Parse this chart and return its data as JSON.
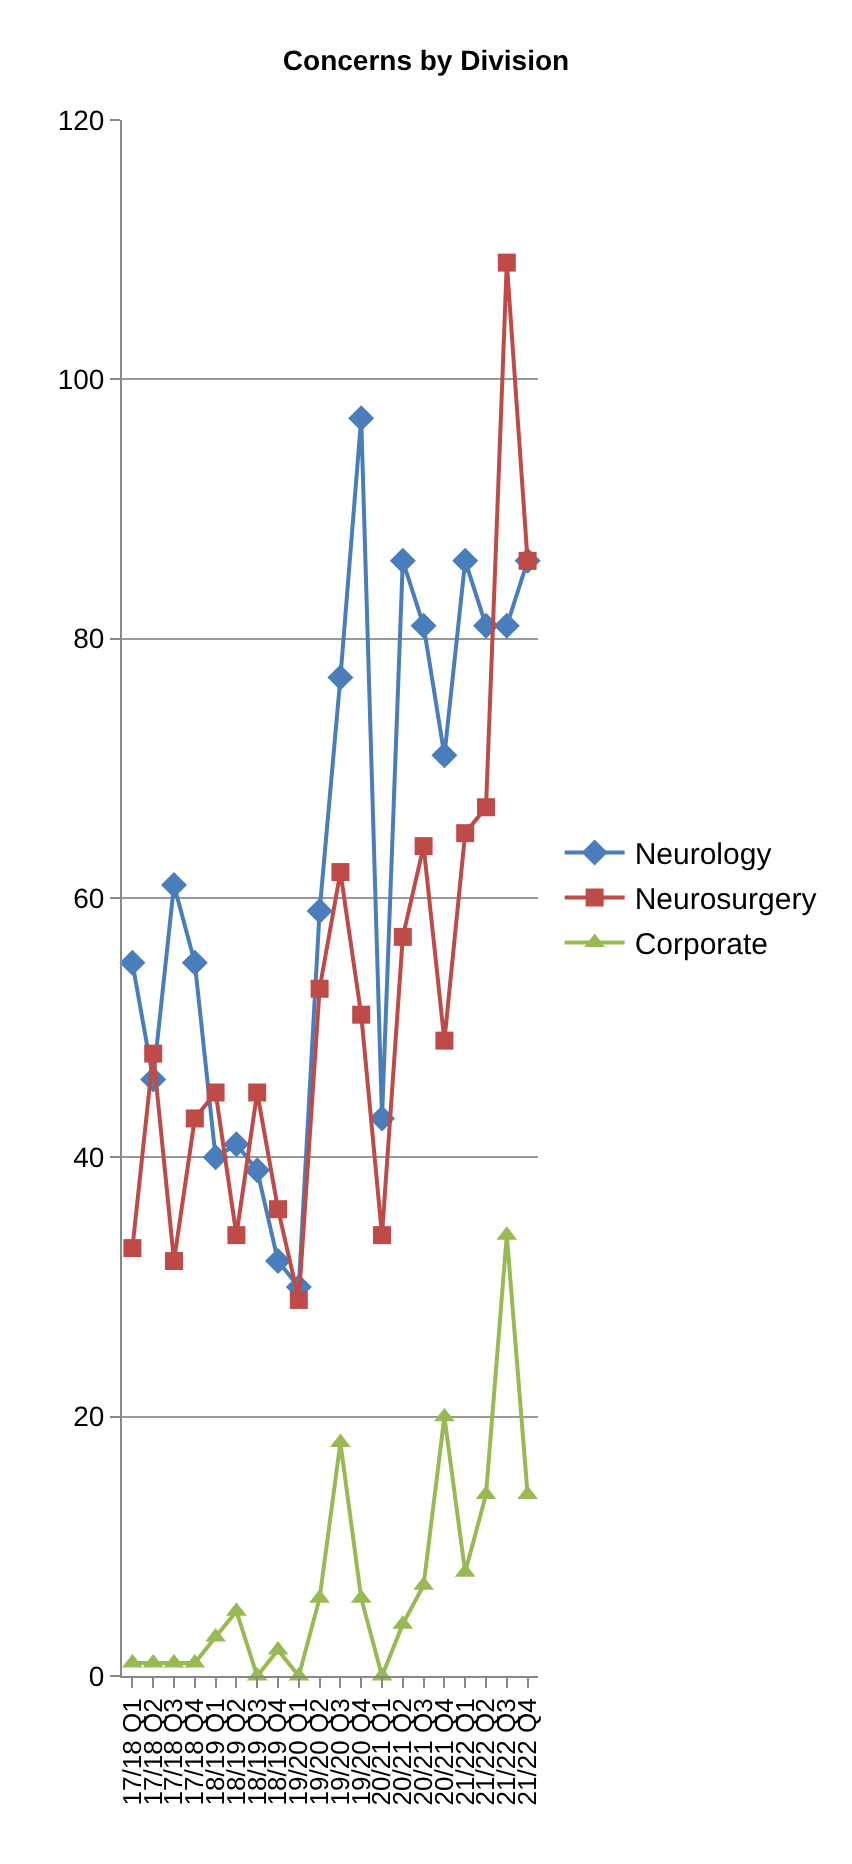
{
  "chart_data": {
    "type": "line",
    "title": "Concerns by Division",
    "categories": [
      "17/18 Q1",
      "17/18 Q2",
      "17/18 Q3",
      "17/18 Q4",
      "18/19 Q1",
      "18/19 Q2",
      "18/19 Q3",
      "18/19 Q4",
      "19/20 Q1",
      "19/20 Q2",
      "19/20 Q3",
      "19/20 Q4",
      "20/21 Q1",
      "20/21 Q2",
      "20/21 Q3",
      "20/21 Q4",
      "21/22 Q1",
      "21/22 Q2",
      "21/22 Q3",
      "21/22 Q4"
    ],
    "series": [
      {
        "name": "Neurology",
        "color": "#4a7ebb",
        "marker": "diamond",
        "values": [
          55,
          46,
          61,
          55,
          40,
          41,
          39,
          32,
          30,
          59,
          77,
          97,
          43,
          86,
          81,
          71,
          86,
          81,
          81,
          86
        ]
      },
      {
        "name": "Neurosurgery",
        "color": "#be4b48",
        "marker": "square",
        "values": [
          33,
          48,
          32,
          43,
          45,
          34,
          45,
          36,
          29,
          53,
          62,
          51,
          34,
          57,
          64,
          49,
          65,
          67,
          109,
          86
        ]
      },
      {
        "name": "Corporate",
        "color": "#98b954",
        "marker": "triangle",
        "values": [
          1,
          1,
          1,
          1,
          3,
          5,
          0,
          2,
          0,
          6,
          18,
          6,
          0,
          4,
          7,
          20,
          8,
          14,
          34,
          14
        ]
      }
    ],
    "ylim": [
      0,
      120
    ],
    "yticks": [
      0,
      20,
      40,
      60,
      80,
      100,
      120
    ],
    "grid": "y",
    "legend": "right"
  }
}
